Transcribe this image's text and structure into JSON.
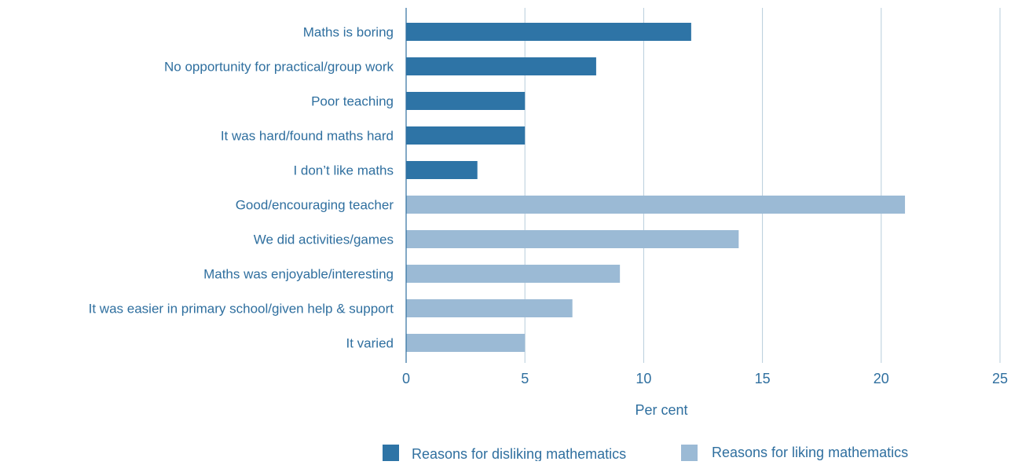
{
  "chart_data": {
    "type": "bar",
    "orientation": "horizontal",
    "categories": [
      "Maths is boring",
      "No opportunity for practical/group work",
      "Poor teaching",
      "It was hard/found maths hard",
      "I don’t like maths",
      "Good/encouraging teacher",
      "We did activities/games",
      "Maths was enjoyable/interesting",
      "It was easier in primary school/given help & support",
      "It varied"
    ],
    "values": [
      12,
      8,
      5,
      5,
      3,
      21,
      14,
      9,
      7,
      5
    ],
    "series_index": [
      0,
      0,
      0,
      0,
      0,
      1,
      1,
      1,
      1,
      1
    ],
    "series": [
      {
        "name": "Reasons for disliking mathematics",
        "color": "#2e74a6"
      },
      {
        "name": "Reasons for liking mathematics",
        "color": "#9bbad5"
      }
    ],
    "xlabel": "Per cent",
    "ylabel": "",
    "title": "",
    "xlim": [
      0,
      25
    ],
    "xticks": [
      0,
      5,
      10,
      15,
      20,
      25
    ],
    "grid": "vertical",
    "legend_position": "bottom"
  }
}
